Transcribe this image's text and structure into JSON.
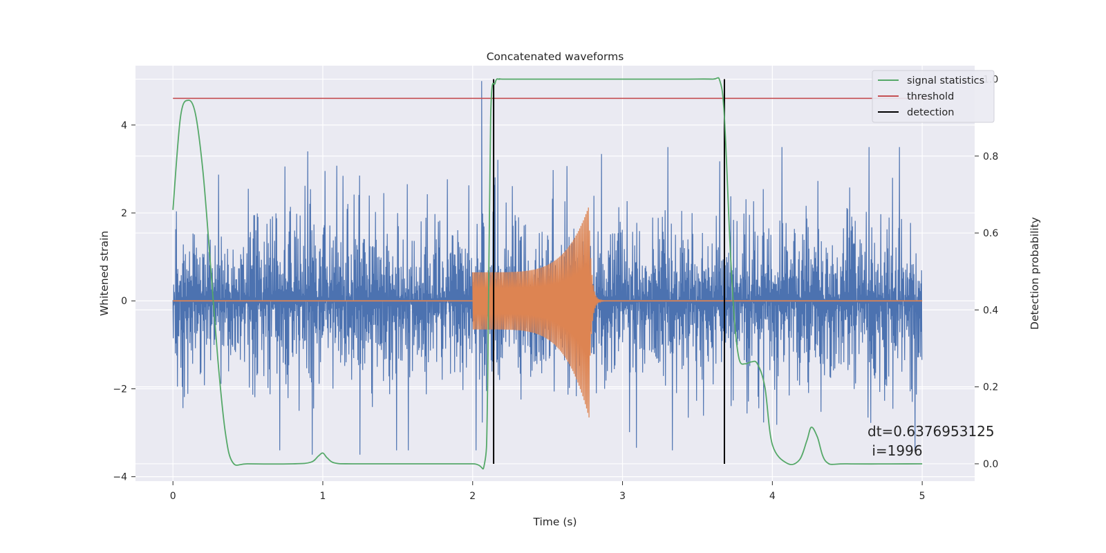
{
  "chart_data": {
    "type": "line",
    "title": "Concatenated waveforms",
    "xlabel": "Time (s)",
    "ylabel": "Whitened strain",
    "ylabel_right": "Detection probability",
    "xlim": [
      -0.25,
      5.35
    ],
    "ylim": [
      -4.1,
      5.35
    ],
    "ylim_right": [
      -0.045,
      1.035
    ],
    "x_ticks": [
      0,
      1,
      2,
      3,
      4,
      5
    ],
    "y_ticks": [
      -4,
      -2,
      0,
      2,
      4
    ],
    "y_right_ticks": [
      0.0,
      0.2,
      0.4,
      0.6,
      0.8,
      1.0
    ],
    "grid": true,
    "legend_position": "top-right",
    "colors": {
      "background": "#eaeaf2",
      "grid": "#ffffff",
      "strain": "#4c72b0",
      "injection": "#dd8452",
      "signal_statistics": "#55a868",
      "threshold": "#c44e52",
      "detection": "#000000"
    },
    "legend": [
      {
        "label": "signal statistics",
        "color": "#55a868"
      },
      {
        "label": "threshold",
        "color": "#c44e52"
      },
      {
        "label": "detection",
        "color": "#000000"
      }
    ],
    "series": [
      {
        "name": "signal statistics",
        "axis": "right",
        "x": [
          0,
          0.05,
          0.1,
          0.15,
          0.2,
          0.25,
          0.3,
          0.35,
          0.4,
          0.5,
          0.8,
          0.92,
          0.97,
          1.0,
          1.03,
          1.08,
          1.2,
          1.6,
          2.0,
          2.08,
          2.1,
          2.12,
          2.15,
          2.18,
          2.22,
          2.6,
          3.0,
          3.4,
          3.6,
          3.65,
          3.68,
          3.72,
          3.75,
          3.78,
          3.82,
          3.86,
          3.9,
          3.95,
          4.0,
          4.1,
          4.18,
          4.23,
          4.26,
          4.3,
          4.36,
          4.5,
          5.0
        ],
        "y": [
          0.66,
          0.9,
          0.945,
          0.91,
          0.76,
          0.52,
          0.27,
          0.08,
          0.003,
          0.0,
          0.0,
          0.004,
          0.02,
          0.028,
          0.015,
          0.002,
          0.0,
          0.0,
          0.0,
          0.002,
          0.2,
          0.9,
          0.99,
          1.0,
          1.0,
          1.0,
          1.0,
          1.0,
          1.0,
          0.995,
          0.9,
          0.55,
          0.36,
          0.27,
          0.26,
          0.265,
          0.26,
          0.2,
          0.05,
          0.001,
          0.01,
          0.06,
          0.095,
          0.07,
          0.005,
          0.0,
          0.0
        ]
      },
      {
        "name": "threshold",
        "axis": "right",
        "x": [
          0,
          5.05
        ],
        "y": [
          0.95,
          0.95
        ]
      }
    ],
    "detections": [
      2.14,
      3.68
    ],
    "whitened_strain": {
      "x_range": [
        0,
        5.0
      ],
      "typical_envelope": [
        -2.5,
        2.6
      ],
      "max": 5.0,
      "min": -3.4
    },
    "injected_waveform": {
      "x_range": [
        2.0,
        2.8
      ],
      "start_amplitude": 0.65,
      "peak_amplitude": 2.2,
      "min_amplitude": -2.7,
      "peak_time": 2.78
    },
    "annotation": {
      "line1": "dt=0.6376953125",
      "line2": " i=1996"
    }
  }
}
